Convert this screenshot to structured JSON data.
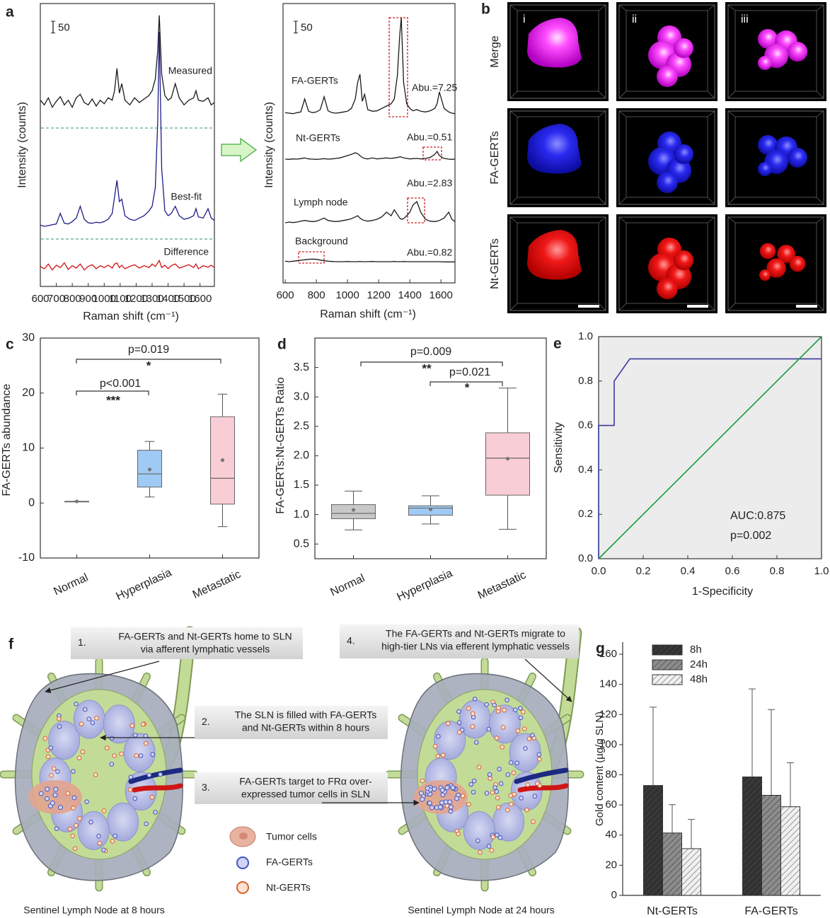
{
  "panel_labels": [
    "a",
    "b",
    "c",
    "d",
    "e",
    "f",
    "g"
  ],
  "chart_data": [
    {
      "type": "line",
      "xlabel": "Raman shift (cm⁻¹)",
      "ylabel": "Intensity (counts)",
      "scale_bar": 50,
      "xlim": [
        600,
        1690
      ],
      "ylim": [
        0,
        1200
      ],
      "xticks": [
        600,
        700,
        800,
        900,
        1000,
        1100,
        1200,
        1300,
        1400,
        1500,
        1600
      ],
      "x": [
        600,
        625,
        650,
        675,
        700,
        725,
        750,
        775,
        800,
        825,
        850,
        875,
        900,
        925,
        950,
        975,
        1000,
        1025,
        1050,
        1065,
        1080,
        1095,
        1110,
        1130,
        1160,
        1190,
        1220,
        1250,
        1280,
        1300,
        1320,
        1335,
        1345,
        1360,
        1380,
        1400,
        1420,
        1445,
        1470,
        1500,
        1530,
        1560,
        1575,
        1590,
        1620,
        1650,
        1670,
        1690
      ],
      "series": [
        {
          "name": "Measured",
          "color": "#1a1a1a",
          "values": [
            790,
            770,
            800,
            760,
            785,
            805,
            770,
            790,
            760,
            800,
            815,
            780,
            770,
            795,
            765,
            790,
            775,
            800,
            790,
            830,
            925,
            820,
            860,
            790,
            770,
            800,
            780,
            795,
            810,
            830,
            880,
            1000,
            1150,
            900,
            810,
            790,
            800,
            860,
            800,
            770,
            790,
            800,
            830,
            790,
            785,
            800,
            770,
            780
          ]
        },
        {
          "name": "Best-fit",
          "color": "#1c1c8a",
          "values": [
            260,
            255,
            258,
            262,
            265,
            310,
            268,
            265,
            275,
            290,
            340,
            285,
            270,
            268,
            272,
            270,
            275,
            285,
            310,
            380,
            450,
            360,
            370,
            300,
            285,
            280,
            290,
            300,
            320,
            340,
            420,
            700,
            1080,
            500,
            320,
            300,
            310,
            340,
            300,
            285,
            290,
            300,
            330,
            295,
            290,
            330,
            290,
            280
          ]
        },
        {
          "name": "Difference",
          "color": "#d01010",
          "values": [
            85,
            75,
            95,
            70,
            90,
            80,
            100,
            72,
            88,
            78,
            95,
            70,
            85,
            92,
            75,
            88,
            80,
            90,
            78,
            95,
            100,
            80,
            90,
            75,
            85,
            92,
            78,
            88,
            80,
            95,
            85,
            100,
            110,
            80,
            90,
            75,
            88,
            95,
            78,
            85,
            92,
            80,
            95,
            75,
            88,
            82,
            90,
            80
          ]
        }
      ]
    },
    {
      "type": "line",
      "xlabel": "Raman shift (cm⁻¹)",
      "ylabel": "Intensity (counts)",
      "scale_bar": 50,
      "xlim": [
        586,
        1690
      ],
      "ylim": [
        0,
        1185
      ],
      "xticks": [
        600,
        800,
        1000,
        1200,
        1400,
        1600
      ],
      "x": [
        600,
        625,
        650,
        675,
        700,
        725,
        750,
        775,
        800,
        825,
        850,
        875,
        900,
        925,
        950,
        975,
        1000,
        1025,
        1050,
        1065,
        1080,
        1095,
        1110,
        1130,
        1160,
        1190,
        1220,
        1250,
        1280,
        1300,
        1320,
        1335,
        1345,
        1360,
        1380,
        1400,
        1420,
        1445,
        1470,
        1500,
        1530,
        1560,
        1575,
        1590,
        1620,
        1650,
        1670,
        1690
      ],
      "series": [
        {
          "name": "FA-GERTs",
          "note": "Abu.=7.25",
          "color": "#1a1a1a",
          "values": [
            722,
            720,
            718,
            722,
            725,
            780,
            728,
            722,
            725,
            735,
            790,
            730,
            722,
            720,
            722,
            725,
            728,
            740,
            780,
            850,
            885,
            770,
            800,
            735,
            728,
            730,
            740,
            750,
            760,
            780,
            880,
            1050,
            1125,
            850,
            760,
            740,
            730,
            735,
            728,
            725,
            730,
            740,
            760,
            810,
            740,
            725,
            720,
            718
          ]
        },
        {
          "name": "Nt-GERTs",
          "note": "Abu.=0.51",
          "color": "#1a1a1a",
          "values": [
            525,
            524,
            526,
            525,
            527,
            530,
            526,
            525,
            524,
            525,
            527,
            525,
            526,
            528,
            530,
            535,
            540,
            545,
            552,
            548,
            540,
            532,
            528,
            526,
            530,
            526,
            528,
            530,
            528,
            530,
            532,
            535,
            534,
            530,
            528,
            526,
            527,
            528,
            526,
            528,
            532,
            545,
            558,
            540,
            528,
            525,
            524,
            525
          ]
        },
        {
          "name": "Lymph node",
          "note": "Abu.=2.83",
          "color": "#1a1a1a",
          "values": [
            255,
            258,
            256,
            258,
            262,
            265,
            262,
            260,
            262,
            268,
            275,
            265,
            262,
            260,
            262,
            265,
            268,
            272,
            280,
            285,
            275,
            268,
            265,
            262,
            265,
            270,
            280,
            300,
            285,
            310,
            290,
            275,
            270,
            272,
            285,
            300,
            330,
            345,
            300,
            270,
            262,
            260,
            262,
            265,
            275,
            300,
            270,
            260
          ]
        },
        {
          "name": "Background",
          "note": "Abu.=0.82",
          "color": "#1a1a1a",
          "values": [
            92,
            90,
            92,
            94,
            96,
            98,
            100,
            101,
            100,
            97,
            94,
            92,
            91,
            90,
            90,
            90,
            91,
            90,
            90,
            90,
            91,
            90,
            90,
            90,
            91,
            90,
            90,
            90,
            90,
            91,
            90,
            90,
            90,
            91,
            90,
            90,
            90,
            90,
            90,
            90,
            90,
            90,
            90,
            90,
            89,
            89,
            89,
            89
          ]
        }
      ]
    },
    {
      "type": "box",
      "ylabel": "FA-GERTs abundance",
      "categories": [
        "Normal",
        "Hyperplasia",
        "Metastatic"
      ],
      "min": [
        0.3,
        1.1,
        -4.3
      ],
      "q1": [
        0.3,
        2.9,
        -0.2
      ],
      "median": [
        0.3,
        5.3,
        4.5
      ],
      "q3": [
        0.3,
        9.6,
        15.7
      ],
      "max": [
        0.3,
        11.2,
        19.8
      ],
      "mean": [
        0.3,
        6.1,
        7.8
      ],
      "colors": [
        "#c8c8c8",
        "#9fcaf3",
        "#f9cdd5"
      ],
      "ylim": [
        -10,
        30
      ],
      "yticks": [
        -10,
        0,
        10,
        20,
        30
      ],
      "annotations": [
        "p=0.019",
        "*",
        "p<0.001",
        "***"
      ]
    },
    {
      "type": "box",
      "ylabel": "FA-GERTs:Nt-GERTs  Ratio",
      "categories": [
        "Normal",
        "Hyperplasia",
        "Metastatic"
      ],
      "min": [
        0.74,
        0.84,
        0.75
      ],
      "q1": [
        0.93,
        0.99,
        1.33
      ],
      "median": [
        1.02,
        1.11,
        1.96
      ],
      "q3": [
        1.17,
        1.15,
        2.39
      ],
      "max": [
        1.4,
        1.32,
        3.15
      ],
      "mean": [
        1.08,
        1.09,
        1.95
      ],
      "colors": [
        "#c8c8c8",
        "#9fcaf3",
        "#f9cdd5"
      ],
      "ylim": [
        0.25,
        4.0
      ],
      "yticks": [
        0.5,
        {
          "value": 1,
          "label": "1.0"
        },
        1.5,
        {
          "value": 2,
          "label": "2.0"
        },
        2.5,
        {
          "value": 3,
          "label": "3.0"
        },
        3.5
      ],
      "annotations": [
        "p=0.009",
        "**",
        "p=0.021",
        "*"
      ]
    },
    {
      "type": "line",
      "xlabel": "1-Specificity",
      "ylabel": "Sensitivity",
      "xlim": [
        0,
        1
      ],
      "ylim": [
        0,
        1
      ],
      "xticks": [
        {
          "value": 0,
          "label": "0.0"
        },
        0.2,
        0.4,
        0.6,
        0.8,
        {
          "value": 1,
          "label": "1.0"
        }
      ],
      "yticks": [
        {
          "value": 0,
          "label": "0.0"
        },
        0.2,
        0.4,
        0.6,
        0.8,
        {
          "value": 1,
          "label": "1.0"
        }
      ],
      "series": [
        {
          "color": "#3a3a9a",
          "x": [
            0,
            0,
            0.07,
            0.07,
            0.14,
            1
          ],
          "values": [
            0,
            0.6,
            0.6,
            0.8,
            0.9,
            0.9
          ]
        },
        {
          "color": "#1a9a3a",
          "x": [
            0,
            1
          ],
          "values": [
            0,
            1
          ]
        }
      ],
      "annotations": [
        "AUC:0.875",
        "p=0.002"
      ]
    },
    {
      "type": "bar",
      "ylabel": "Gold content (µg/g SLN)",
      "categories": [
        "Nt-GERTs",
        "FA-GERTs"
      ],
      "ylim": [
        0,
        168
      ],
      "yticks": [
        0,
        20,
        40,
        60,
        80,
        100,
        120,
        140,
        160
      ],
      "legend": "upper left",
      "series": [
        {
          "name": "8h",
          "color": "#383838",
          "values": [
            72.9,
            78.6
          ],
          "errors": [
            52,
            58.4
          ]
        },
        {
          "name": "24h",
          "color": "#8c8c8c",
          "values": [
            41.4,
            66.4
          ],
          "errors": [
            18.8,
            56.9
          ]
        },
        {
          "name": "48h",
          "color": "#f0f0f0",
          "values": [
            31,
            58.8
          ],
          "errors": [
            19.4,
            29.2
          ]
        }
      ]
    }
  ],
  "panel_b": {
    "columns": [
      "i",
      "ii",
      "iii"
    ],
    "rows": [
      "Merge",
      "FA-GERTs",
      "Nt-GERTs"
    ]
  },
  "panel_f": {
    "steps": [
      {
        "number": "1.",
        "lines": [
          "FA-GERTs and Nt-GERTs home to SLN",
          "via afferent lymphatic vessels"
        ]
      },
      {
        "number": "2.",
        "lines": [
          "The SLN is filled with FA-GERTs",
          "and Nt-GERTs within 8 hours"
        ]
      },
      {
        "number": "3.",
        "lines": [
          "FA-GERTs target to  FRα over-",
          "expressed  tumor cells in SLN"
        ]
      },
      {
        "number": "4.",
        "lines": [
          "The FA-GERTs and Nt-GERTs migrate to",
          "high-tier LNs via efferent lymphatic vessels"
        ]
      }
    ],
    "legend": [
      "Tumor cells",
      "FA-GERTs",
      "Nt-GERTs"
    ],
    "captions": [
      "Sentinel Lymph Node at 8 hours",
      "Sentinel Lymph Node at 24 hours"
    ]
  }
}
